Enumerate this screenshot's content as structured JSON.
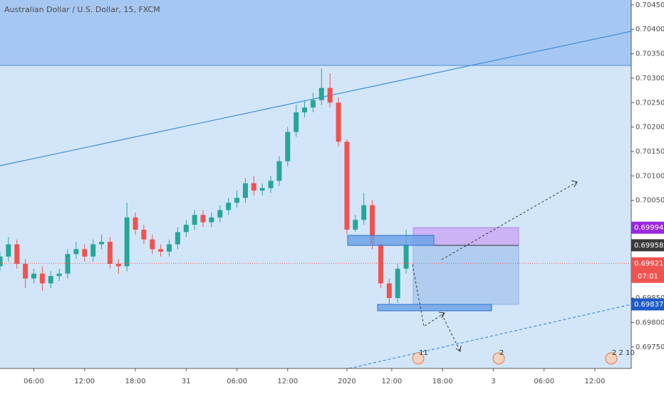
{
  "chart_data": {
    "type": "candlestick",
    "title": "Australian Dollar / U.S. Dollar, 15, FXCM",
    "x": [
      2,
      3,
      4,
      5,
      6,
      7,
      8,
      9,
      10,
      11,
      12,
      13,
      14,
      15,
      16,
      17,
      18,
      19,
      20,
      21,
      22,
      23,
      24,
      25,
      26,
      27,
      28,
      29,
      30,
      31,
      32,
      33,
      34,
      35,
      36,
      37,
      38,
      39,
      40,
      41,
      42,
      43,
      44,
      45,
      46,
      47,
      48,
      49,
      50
    ],
    "open": [
      0.69915,
      0.69935,
      0.6996,
      0.6992,
      0.6989,
      0.699,
      0.6988,
      0.69895,
      0.699,
      0.6994,
      0.6995,
      0.69935,
      0.6996,
      0.69965,
      0.6992,
      0.69915,
      0.70015,
      0.6999,
      0.6997,
      0.6995,
      0.69945,
      0.6996,
      0.69985,
      0.7,
      0.7002,
      0.70005,
      0.70015,
      0.7003,
      0.70045,
      0.70055,
      0.70085,
      0.7007,
      0.70075,
      0.7009,
      0.7013,
      0.7019,
      0.7023,
      0.7024,
      0.70255,
      0.7028,
      0.7025,
      0.7017,
      0.6999,
      0.7001,
      0.7004,
      0.6996,
      0.6988,
      0.6985,
      0.6991
    ],
    "high": [
      0.69945,
      0.69975,
      0.6997,
      0.6993,
      0.6991,
      0.69915,
      0.69905,
      0.6991,
      0.6995,
      0.69965,
      0.6996,
      0.6997,
      0.6998,
      0.69975,
      0.6993,
      0.70045,
      0.70025,
      0.7,
      0.6998,
      0.6996,
      0.6997,
      0.69995,
      0.7001,
      0.7003,
      0.7003,
      0.70025,
      0.7004,
      0.70055,
      0.7007,
      0.70095,
      0.701,
      0.70085,
      0.701,
      0.7014,
      0.702,
      0.70245,
      0.70255,
      0.7027,
      0.7032,
      0.7031,
      0.7026,
      0.70175,
      0.7002,
      0.70065,
      0.7005,
      0.6997,
      0.6989,
      0.6992,
      0.6999
    ],
    "low": [
      0.69905,
      0.69925,
      0.6991,
      0.6987,
      0.6988,
      0.69865,
      0.6987,
      0.69885,
      0.6989,
      0.6993,
      0.69925,
      0.69925,
      0.6995,
      0.6991,
      0.699,
      0.69905,
      0.6998,
      0.6996,
      0.6994,
      0.69935,
      0.69935,
      0.6995,
      0.69975,
      0.6999,
      0.69995,
      0.69995,
      0.70005,
      0.7002,
      0.70035,
      0.70045,
      0.7006,
      0.7006,
      0.70065,
      0.7008,
      0.7012,
      0.7018,
      0.7022,
      0.7023,
      0.70245,
      0.7024,
      0.7016,
      0.6998,
      0.69985,
      0.7,
      0.6995,
      0.6987,
      0.69835,
      0.6984,
      0.699
    ],
    "close": [
      0.69935,
      0.6996,
      0.6992,
      0.6989,
      0.699,
      0.6988,
      0.69895,
      0.699,
      0.6994,
      0.6995,
      0.69935,
      0.6996,
      0.69965,
      0.6992,
      0.69915,
      0.70015,
      0.6999,
      0.6997,
      0.6995,
      0.69945,
      0.6996,
      0.69985,
      0.7,
      0.7002,
      0.70005,
      0.70015,
      0.7003,
      0.70045,
      0.70055,
      0.70085,
      0.7007,
      0.70075,
      0.7009,
      0.7013,
      0.7019,
      0.7023,
      0.7024,
      0.70255,
      0.7028,
      0.7025,
      0.7017,
      0.6999,
      0.7001,
      0.7004,
      0.6996,
      0.6988,
      0.6985,
      0.6991,
      0.6996
    ],
    "up_color": "#26a69a",
    "down_color": "#ef5350",
    "xlim": [
      2,
      76.6
    ],
    "xticks": [
      {
        "value": 6,
        "label": "06:00"
      },
      {
        "value": 12,
        "label": "12:00"
      },
      {
        "value": 18,
        "label": "18:00"
      },
      {
        "value": 24,
        "label": "31"
      },
      {
        "value": 30,
        "label": "06:00"
      },
      {
        "value": 36,
        "label": "12:00"
      },
      {
        "value": 43,
        "label": "2020"
      },
      {
        "value": 48.3,
        "label": "12:00"
      },
      {
        "value": 54.3,
        "label": "18:00"
      },
      {
        "value": 60.3,
        "label": "3"
      },
      {
        "value": 66.3,
        "label": "06:00"
      },
      {
        "value": 72.3,
        "label": "12:00"
      }
    ],
    "ylim": [
      0.69706,
      0.7046
    ],
    "yticks": [
      {
        "value": 0.7045,
        "label": "0.70450"
      },
      {
        "value": 0.704,
        "label": "0.70400"
      },
      {
        "value": 0.7035,
        "label": "0.70350"
      },
      {
        "value": 0.703,
        "label": "0.70300"
      },
      {
        "value": 0.7025,
        "label": "0.70250"
      },
      {
        "value": 0.702,
        "label": "0.70200"
      },
      {
        "value": 0.7015,
        "label": "0.70150"
      },
      {
        "value": 0.701,
        "label": "0.70100"
      },
      {
        "value": 0.7005,
        "label": "0.70050"
      },
      {
        "value": 0.6985,
        "label": "0.69850"
      },
      {
        "value": 0.698,
        "label": "0.69800"
      },
      {
        "value": 0.6975,
        "label": "0.69750"
      }
    ],
    "price_tags": [
      {
        "value": 0.69994,
        "color": "#9c27e0"
      },
      {
        "value": 0.69958,
        "color": "#3a3a3a"
      },
      {
        "value": 0.69921,
        "color": "#ef5350"
      },
      {
        "value": 0.69837,
        "color": "#1e5bc6"
      }
    ],
    "last_price": 0.69921,
    "countdown": "07:01",
    "events": [
      "11",
      "2",
      "2 2 10"
    ]
  }
}
